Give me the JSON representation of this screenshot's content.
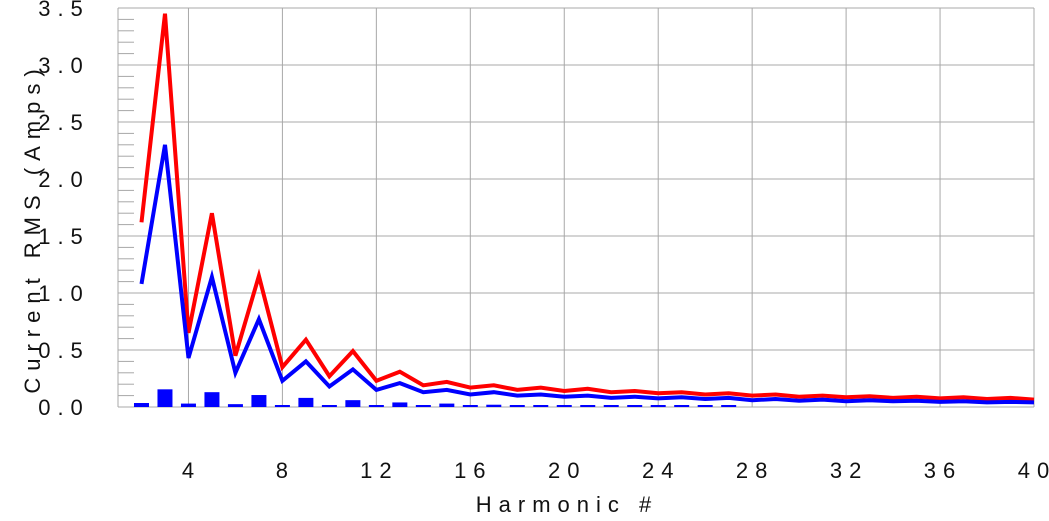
{
  "chart_data": {
    "type": "line",
    "xlabel": "Harmonic #",
    "ylabel": "Current RMS (Amps)",
    "xlim": [
      1,
      40
    ],
    "ylim": [
      0,
      3.5
    ],
    "x_ticks": [
      4,
      8,
      12,
      16,
      20,
      24,
      28,
      32,
      36,
      40
    ],
    "y_ticks": [
      0.0,
      0.5,
      1.0,
      1.5,
      2.0,
      2.5,
      3.0,
      3.5
    ],
    "x_tick_labels": [
      "4",
      "8",
      "12",
      "16",
      "20",
      "24",
      "28",
      "32",
      "36",
      "40"
    ],
    "y_tick_labels": [
      "0.0",
      "0.5",
      "1.0",
      "1.5",
      "2.0",
      "2.5",
      "3.0",
      "3.5"
    ],
    "grid": true,
    "legend": "none",
    "line_series": [
      {
        "color": "#ff0000",
        "x": [
          2,
          3,
          4,
          5,
          6,
          7,
          8,
          9,
          10,
          11,
          12,
          13,
          14,
          15,
          16,
          17,
          18,
          19,
          20,
          21,
          22,
          23,
          24,
          25,
          26,
          27,
          28,
          29,
          30,
          31,
          32,
          33,
          34,
          35,
          36,
          37,
          38,
          39,
          40
        ],
        "values": [
          1.62,
          3.45,
          0.65,
          1.7,
          0.45,
          1.15,
          0.35,
          0.59,
          0.27,
          0.49,
          0.23,
          0.31,
          0.19,
          0.22,
          0.17,
          0.19,
          0.15,
          0.17,
          0.14,
          0.16,
          0.13,
          0.14,
          0.12,
          0.13,
          0.11,
          0.12,
          0.1,
          0.11,
          0.09,
          0.1,
          0.085,
          0.095,
          0.08,
          0.09,
          0.075,
          0.085,
          0.07,
          0.08,
          0.065
        ]
      },
      {
        "color": "#0000ff",
        "x": [
          2,
          3,
          4,
          5,
          6,
          7,
          8,
          9,
          10,
          11,
          12,
          13,
          14,
          15,
          16,
          17,
          18,
          19,
          20,
          21,
          22,
          23,
          24,
          25,
          26,
          27,
          28,
          29,
          30,
          31,
          32,
          33,
          34,
          35,
          36,
          37,
          38,
          39,
          40
        ],
        "values": [
          1.08,
          2.3,
          0.43,
          1.14,
          0.3,
          0.77,
          0.23,
          0.4,
          0.18,
          0.33,
          0.15,
          0.21,
          0.13,
          0.15,
          0.11,
          0.13,
          0.1,
          0.11,
          0.09,
          0.1,
          0.08,
          0.09,
          0.075,
          0.085,
          0.07,
          0.08,
          0.06,
          0.07,
          0.055,
          0.065,
          0.05,
          0.06,
          0.05,
          0.055,
          0.045,
          0.05,
          0.04,
          0.045,
          0.04
        ]
      }
    ],
    "bar_series": {
      "color": "#0000ff",
      "x": [
        2,
        3,
        4,
        5,
        6,
        7,
        8,
        9,
        10,
        11,
        12,
        13,
        14,
        15,
        16,
        17,
        18,
        19,
        20,
        21,
        22,
        23,
        24,
        25,
        26,
        27
      ],
      "values": [
        0.035,
        0.155,
        0.03,
        0.13,
        0.025,
        0.105,
        0.015,
        0.08,
        0.01,
        0.06,
        0.008,
        0.04,
        0.006,
        0.03,
        0.005,
        0.02,
        0.004,
        0.015,
        0.003,
        0.012,
        0.003,
        0.01,
        0.002,
        0.008,
        0.002,
        0.006
      ]
    }
  }
}
